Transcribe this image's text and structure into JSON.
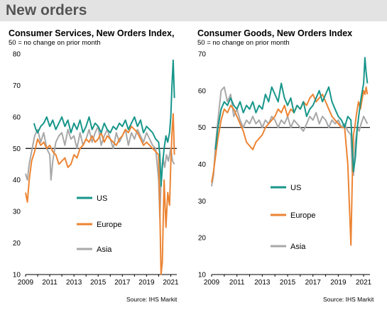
{
  "page": {
    "title": "New orders"
  },
  "colors": {
    "US": "#17968a",
    "Europe": "#ec8433",
    "Asia": "#a8a8a8",
    "reference": "#000000",
    "header_bg": "#e3e3e3"
  },
  "chart_data": [
    {
      "type": "line",
      "title": "Consumer Services, New Orders Index,",
      "subtitle": "50 = no change on prior month",
      "source": "Source: IHS Markit",
      "ylim": [
        10,
        80
      ],
      "yticks": [
        10,
        20,
        30,
        40,
        50,
        60,
        70,
        80
      ],
      "xlim": [
        2009.0,
        2021.5
      ],
      "xticks": [
        "2009",
        "2011",
        "2013",
        "2015",
        "2017",
        "2019",
        "2021"
      ],
      "reference_line": 50,
      "legend": [
        {
          "name": "US",
          "color": "#17968a"
        },
        {
          "name": "Europe",
          "color": "#ec8433"
        },
        {
          "name": "Asia",
          "color": "#a8a8a8"
        }
      ],
      "series": [
        {
          "name": "US",
          "x": [
            2009.7,
            2009.85,
            2010.0,
            2010.25,
            2010.5,
            2010.75,
            2011.0,
            2011.25,
            2011.5,
            2011.75,
            2012.0,
            2012.25,
            2012.5,
            2012.75,
            2013.0,
            2013.25,
            2013.5,
            2013.75,
            2014.0,
            2014.25,
            2014.5,
            2014.75,
            2015.0,
            2015.25,
            2015.5,
            2015.75,
            2016.0,
            2016.25,
            2016.5,
            2016.75,
            2017.0,
            2017.25,
            2017.5,
            2017.75,
            2018.0,
            2018.25,
            2018.5,
            2018.75,
            2019.0,
            2019.25,
            2019.5,
            2019.75,
            2020.0,
            2020.1,
            2020.2,
            2020.3,
            2020.45,
            2020.6,
            2020.75,
            2020.9,
            2021.0,
            2021.1,
            2021.2,
            2021.3
          ],
          "y": [
            58,
            56,
            55,
            57,
            58,
            60,
            57,
            59,
            56,
            58,
            60,
            57,
            59,
            55,
            58,
            56,
            59,
            55,
            57,
            60,
            56,
            58,
            57,
            55,
            58,
            56,
            55,
            57,
            56,
            58,
            57,
            59,
            56,
            58,
            60,
            57,
            59,
            55,
            57,
            56,
            55,
            53,
            52,
            48,
            38,
            44,
            50,
            54,
            52,
            55,
            60,
            70,
            78,
            66
          ]
        },
        {
          "name": "Europe",
          "x": [
            2009.0,
            2009.15,
            2009.3,
            2009.5,
            2009.75,
            2010.0,
            2010.25,
            2010.5,
            2010.75,
            2011.0,
            2011.25,
            2011.5,
            2011.75,
            2012.0,
            2012.25,
            2012.5,
            2012.75,
            2013.0,
            2013.25,
            2013.5,
            2013.75,
            2014.0,
            2014.25,
            2014.5,
            2014.75,
            2015.0,
            2015.25,
            2015.5,
            2015.75,
            2016.0,
            2016.25,
            2016.5,
            2016.75,
            2017.0,
            2017.25,
            2017.5,
            2017.75,
            2018.0,
            2018.25,
            2018.5,
            2018.75,
            2019.0,
            2019.25,
            2019.5,
            2019.75,
            2020.0,
            2020.1,
            2020.2,
            2020.3,
            2020.45,
            2020.6,
            2020.75,
            2020.9,
            2021.0,
            2021.1,
            2021.2,
            2021.3
          ],
          "y": [
            36,
            33,
            40,
            46,
            49,
            53,
            51,
            52,
            50,
            51,
            49,
            48,
            45,
            46,
            47,
            44,
            45,
            48,
            47,
            50,
            51,
            53,
            52,
            54,
            52,
            53,
            55,
            52,
            54,
            53,
            52,
            51,
            53,
            54,
            56,
            55,
            57,
            56,
            55,
            53,
            51,
            52,
            51,
            50,
            49,
            48,
            30,
            10,
            14,
            40,
            25,
            36,
            32,
            45,
            55,
            61,
            48
          ]
        },
        {
          "name": "Asia",
          "x": [
            2009.0,
            2009.15,
            2009.3,
            2009.5,
            2009.75,
            2010.0,
            2010.25,
            2010.5,
            2010.75,
            2011.0,
            2011.1,
            2011.25,
            2011.5,
            2011.75,
            2012.0,
            2012.25,
            2012.5,
            2012.75,
            2013.0,
            2013.25,
            2013.5,
            2013.75,
            2014.0,
            2014.25,
            2014.5,
            2014.75,
            2015.0,
            2015.25,
            2015.5,
            2015.75,
            2016.0,
            2016.25,
            2016.5,
            2016.75,
            2017.0,
            2017.25,
            2017.5,
            2017.75,
            2018.0,
            2018.25,
            2018.5,
            2018.75,
            2019.0,
            2019.25,
            2019.5,
            2019.75,
            2020.0,
            2020.1,
            2020.2,
            2020.35,
            2020.5,
            2020.65,
            2020.8,
            2021.0,
            2021.15,
            2021.3
          ],
          "y": [
            42,
            40,
            45,
            49,
            54,
            56,
            52,
            55,
            50,
            48,
            40,
            46,
            52,
            54,
            55,
            51,
            56,
            53,
            54,
            50,
            55,
            51,
            53,
            56,
            52,
            55,
            57,
            51,
            54,
            56,
            53,
            50,
            55,
            52,
            54,
            56,
            51,
            55,
            53,
            56,
            54,
            52,
            55,
            53,
            51,
            50,
            40,
            28,
            40,
            47,
            44,
            48,
            46,
            50,
            46,
            45
          ]
        }
      ]
    },
    {
      "type": "line",
      "title": "Consumer Goods, New Orders Index",
      "subtitle": "50 = no change on prior month",
      "source": "Source: IHS Markit",
      "ylim": [
        10,
        70
      ],
      "yticks": [
        10,
        20,
        30,
        40,
        50,
        60,
        70
      ],
      "xlim": [
        2009.0,
        2021.5
      ],
      "xticks": [
        "2009",
        "2011",
        "2013",
        "2015",
        "2017",
        "2019",
        "2021"
      ],
      "reference_line": 50,
      "legend": [
        {
          "name": "US",
          "color": "#17968a"
        },
        {
          "name": "Europe",
          "color": "#ec8433"
        },
        {
          "name": "Asia",
          "color": "#a8a8a8"
        }
      ],
      "series": [
        {
          "name": "US",
          "x": [
            2009.3,
            2009.5,
            2009.75,
            2010.0,
            2010.25,
            2010.5,
            2010.75,
            2011.0,
            2011.25,
            2011.5,
            2011.75,
            2012.0,
            2012.25,
            2012.5,
            2012.75,
            2013.0,
            2013.25,
            2013.5,
            2013.75,
            2014.0,
            2014.25,
            2014.5,
            2014.75,
            2015.0,
            2015.25,
            2015.5,
            2015.75,
            2016.0,
            2016.25,
            2016.5,
            2016.75,
            2017.0,
            2017.25,
            2017.5,
            2017.75,
            2018.0,
            2018.25,
            2018.5,
            2018.75,
            2019.0,
            2019.25,
            2019.5,
            2019.75,
            2020.0,
            2020.1,
            2020.2,
            2020.35,
            2020.5,
            2020.65,
            2020.8,
            2021.0,
            2021.1,
            2021.2,
            2021.3
          ],
          "y": [
            44,
            50,
            55,
            57,
            56,
            58,
            56,
            55,
            57,
            54,
            56,
            55,
            57,
            54,
            56,
            55,
            59,
            57,
            61,
            59,
            57,
            62,
            58,
            56,
            58,
            54,
            56,
            55,
            57,
            53,
            55,
            56,
            58,
            60,
            57,
            59,
            61,
            57,
            55,
            53,
            52,
            50,
            53,
            52,
            45,
            38,
            42,
            50,
            54,
            58,
            62,
            69,
            65,
            62
          ]
        },
        {
          "name": "Europe",
          "x": [
            2009.0,
            2009.15,
            2009.3,
            2009.5,
            2009.75,
            2010.0,
            2010.25,
            2010.5,
            2010.75,
            2011.0,
            2011.25,
            2011.5,
            2011.75,
            2012.0,
            2012.25,
            2012.5,
            2012.75,
            2013.0,
            2013.25,
            2013.5,
            2013.75,
            2014.0,
            2014.25,
            2014.5,
            2014.75,
            2015.0,
            2015.25,
            2015.5,
            2015.75,
            2016.0,
            2016.25,
            2016.5,
            2016.75,
            2017.0,
            2017.25,
            2017.5,
            2017.75,
            2018.0,
            2018.25,
            2018.5,
            2018.75,
            2019.0,
            2019.25,
            2019.5,
            2019.75,
            2020.0,
            2020.1,
            2020.2,
            2020.3,
            2020.45,
            2020.6,
            2020.75,
            2020.9,
            2021.0,
            2021.1,
            2021.2,
            2021.3
          ],
          "y": [
            35,
            38,
            42,
            47,
            52,
            55,
            54,
            56,
            55,
            53,
            51,
            49,
            46,
            45,
            44,
            46,
            47,
            48,
            50,
            51,
            52,
            53,
            55,
            54,
            56,
            53,
            55,
            54,
            56,
            55,
            57,
            56,
            58,
            59,
            57,
            58,
            59,
            57,
            55,
            53,
            52,
            51,
            50,
            50,
            40,
            18,
            35,
            48,
            50,
            54,
            57,
            55,
            58,
            60,
            59,
            61,
            59
          ]
        },
        {
          "name": "Asia",
          "x": [
            2009.0,
            2009.15,
            2009.3,
            2009.5,
            2009.75,
            2010.0,
            2010.25,
            2010.5,
            2010.75,
            2011.0,
            2011.25,
            2011.5,
            2011.75,
            2012.0,
            2012.25,
            2012.5,
            2012.75,
            2013.0,
            2013.25,
            2013.5,
            2013.75,
            2014.0,
            2014.25,
            2014.5,
            2014.75,
            2015.0,
            2015.25,
            2015.5,
            2015.75,
            2016.0,
            2016.25,
            2016.5,
            2016.75,
            2017.0,
            2017.25,
            2017.5,
            2017.75,
            2018.0,
            2018.25,
            2018.5,
            2018.75,
            2019.0,
            2019.25,
            2019.5,
            2019.75,
            2020.0,
            2020.1,
            2020.2,
            2020.35,
            2020.5,
            2020.65,
            2020.8,
            2021.0,
            2021.15,
            2021.3
          ],
          "y": [
            34,
            37,
            45,
            52,
            60,
            61,
            57,
            59,
            53,
            55,
            52,
            50,
            52,
            51,
            53,
            51,
            52,
            50,
            52,
            51,
            53,
            52,
            50,
            52,
            51,
            53,
            50,
            52,
            51,
            50,
            49,
            51,
            53,
            52,
            54,
            51,
            53,
            52,
            50,
            52,
            51,
            52,
            50,
            51,
            49,
            48,
            38,
            37,
            46,
            50,
            49,
            51,
            53,
            52,
            51
          ]
        }
      ]
    }
  ]
}
